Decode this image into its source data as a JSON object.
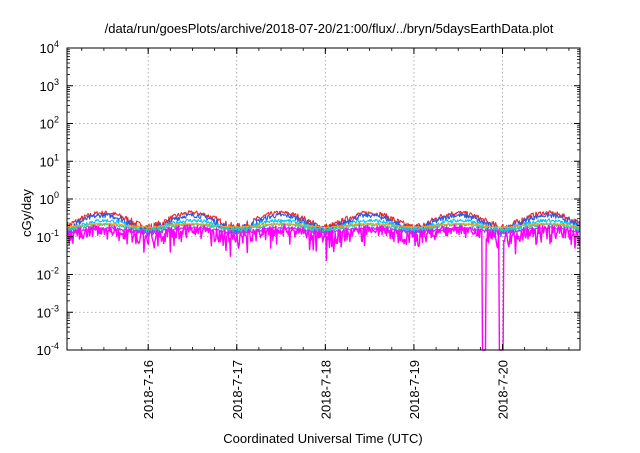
{
  "chart_data": {
    "type": "line",
    "title": "/data/run/goesPlots/archive/2018-07-20/21:00/flux/../bryn/5daysEarthData.plot",
    "xlabel": "Coordinated Universal Time (UTC)",
    "ylabel": "cGy/day",
    "yscale": "log",
    "ylim": [
      0.0001,
      10000
    ],
    "yticks": [
      {
        "value": 0.0001,
        "base": "10",
        "exp": "-4"
      },
      {
        "value": 0.001,
        "base": "10",
        "exp": "-3"
      },
      {
        "value": 0.01,
        "base": "10",
        "exp": "-2"
      },
      {
        "value": 0.1,
        "base": "10",
        "exp": "-1"
      },
      {
        "value": 1,
        "base": "10",
        "exp": "0"
      },
      {
        "value": 10,
        "base": "10",
        "exp": "1"
      },
      {
        "value": 100,
        "base": "10",
        "exp": "2"
      },
      {
        "value": 1000,
        "base": "10",
        "exp": "3"
      },
      {
        "value": 10000,
        "base": "10",
        "exp": "4"
      }
    ],
    "xlim": [
      "2018-07-15 02:00",
      "2018-07-20 21:00"
    ],
    "xticks": [
      "2018-7-16",
      "2018-7-17",
      "2018-7-18",
      "2018-7-19",
      "2018-7-20"
    ],
    "grid": true,
    "series": [
      {
        "color": "#e8262a",
        "base": 0.3,
        "amp": 0.13,
        "noise": 0.06,
        "dips": false
      },
      {
        "color": "#1f5cf0",
        "base": 0.26,
        "amp": 0.11,
        "noise": 0.05,
        "dips": false
      },
      {
        "color": "#00c8f0",
        "base": 0.21,
        "amp": 0.06,
        "noise": 0.03,
        "dips": false
      },
      {
        "color": "#19d4a0",
        "base": 0.18,
        "amp": 0.03,
        "noise": 0.02,
        "dips": false
      },
      {
        "color": "#a93cf2",
        "base": 0.15,
        "amp": 0.02,
        "noise": 0.015,
        "dips": false
      },
      {
        "color": "#f2a020",
        "base": 0.2,
        "amp": 0.02,
        "noise": 0.01,
        "dips": false
      },
      {
        "color": "#ff00ff",
        "base": 0.13,
        "amp": 0.03,
        "noise": 0.05,
        "dips": true,
        "dropouts": [
          [
            "2018-07-19 18:30",
            "2018-07-19 19:30"
          ],
          [
            "2018-07-19 23:00",
            "2018-07-20 00:15"
          ]
        ]
      }
    ]
  }
}
